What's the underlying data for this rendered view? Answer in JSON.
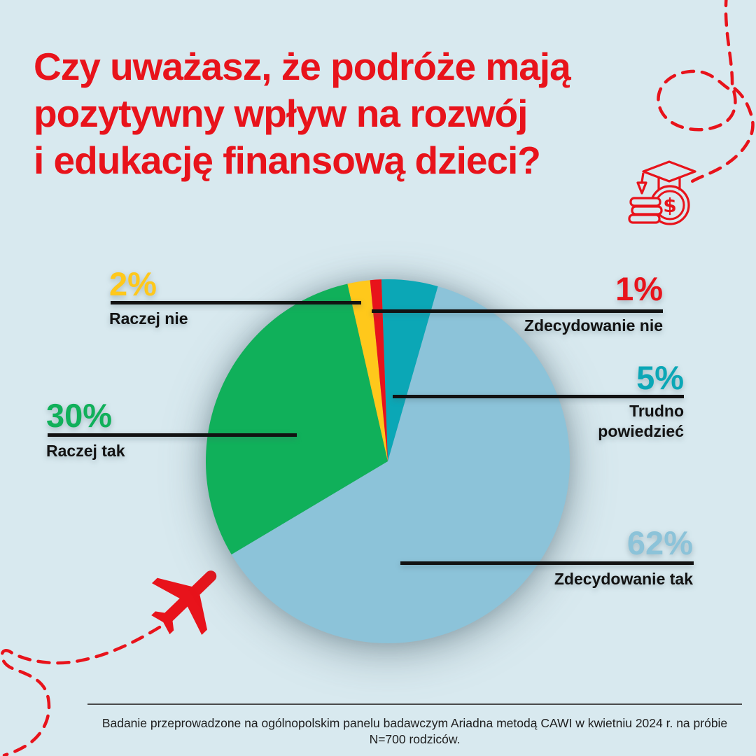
{
  "title": {
    "lines": [
      "Czy uważasz, że podróże mają",
      "pozytywny wpływ na rozwój",
      "i edukację finansową dzieci?"
    ]
  },
  "chart_data": {
    "type": "pie",
    "title": "Czy uważasz, że podróże mają pozytywny wpływ na rozwój i edukację finansową dzieci?",
    "units": "%",
    "total": 100,
    "start_angle_deg": -2,
    "direction": "clockwise",
    "legend_position": "callout-labels",
    "segments": [
      {
        "label": "Trudno powiedzieć",
        "value": 5,
        "display": "5%",
        "color": "#0BA7B6"
      },
      {
        "label": "Zdecydowanie tak",
        "value": 62,
        "display": "62%",
        "color": "#8CC3D9"
      },
      {
        "label": "Raczej tak",
        "value": 30,
        "display": "30%",
        "color": "#10B05A"
      },
      {
        "label": "Raczej nie",
        "value": 2,
        "display": "2%",
        "color": "#FFC81B"
      },
      {
        "label": "Zdecydowanie nie",
        "value": 1,
        "display": "1%",
        "color": "#E8131B"
      }
    ]
  },
  "footer": {
    "text": "Badanie przeprowadzone na ogólnopolskim panelu badawczym Ariadna metodą CAWI w kwietniu 2024 r. na próbie N=700 rodziców."
  },
  "icons": {
    "dollar_sign": "$",
    "graduation_cap_coins": "graduation-cap-with-coins",
    "airplane": "red-airplane",
    "flight_path": "dashed-flight-path"
  },
  "colors": {
    "background": "#D8E9EF",
    "accent_red": "#E8131B",
    "leader_line": "#121212",
    "label_text": "#121212",
    "footer_line": "#4A4A4A"
  }
}
